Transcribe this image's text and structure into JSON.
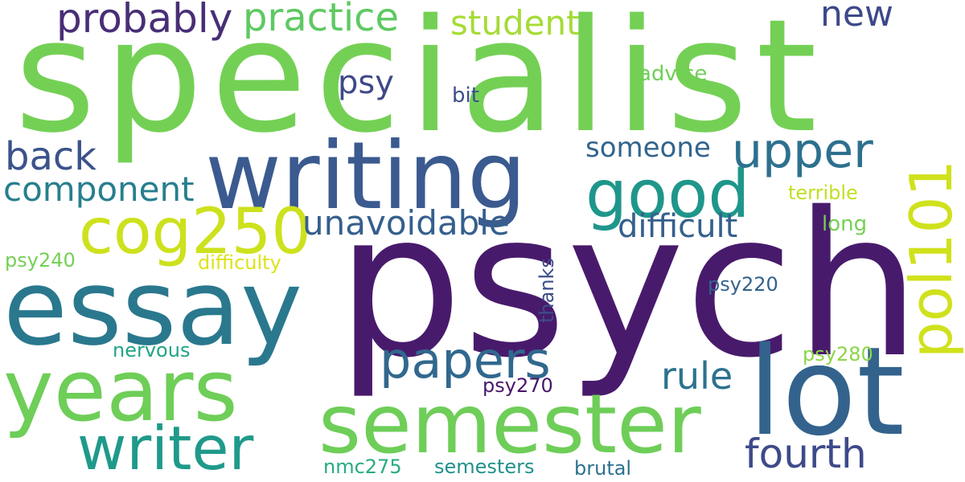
{
  "words": [
    {
      "text": "specialist",
      "color": "#74d055"
    },
    {
      "text": "psych",
      "color": "#481a6c"
    },
    {
      "text": "essay",
      "color": "#2a788e"
    },
    {
      "text": "writing",
      "color": "#3b5a8f"
    },
    {
      "text": "lot",
      "color": "#33638d"
    },
    {
      "text": "semester",
      "color": "#6ece58"
    },
    {
      "text": "years",
      "color": "#6ece58"
    },
    {
      "text": "good",
      "color": "#1f968b"
    },
    {
      "text": "writer",
      "color": "#1f9a8a"
    },
    {
      "text": "cog250",
      "color": "#cde11d"
    },
    {
      "text": "pol101",
      "color": "#d0e11c"
    },
    {
      "text": "upper",
      "color": "#2d708e"
    },
    {
      "text": "papers",
      "color": "#31688e"
    },
    {
      "text": "fourth",
      "color": "#3e4a89"
    },
    {
      "text": "probably",
      "color": "#482e76"
    },
    {
      "text": "practice",
      "color": "#5ec962"
    },
    {
      "text": "student",
      "color": "#a5db36"
    },
    {
      "text": "new",
      "color": "#3e4989"
    },
    {
      "text": "back",
      "color": "#3b528b"
    },
    {
      "text": "component",
      "color": "#277f8e"
    },
    {
      "text": "unavoidable",
      "color": "#355f8d"
    },
    {
      "text": "difficult",
      "color": "#35608d"
    },
    {
      "text": "rule",
      "color": "#2c728e"
    },
    {
      "text": "psy",
      "color": "#3e4989"
    },
    {
      "text": "someone",
      "color": "#32648e"
    },
    {
      "text": "bit",
      "color": "#3d4e8a"
    },
    {
      "text": "advice",
      "color": "#70cf57"
    },
    {
      "text": "terrible",
      "color": "#c2df23"
    },
    {
      "text": "long",
      "color": "#75d054"
    },
    {
      "text": "difficulty",
      "color": "#dde318"
    },
    {
      "text": "psy240",
      "color": "#74d055"
    },
    {
      "text": "thanks",
      "color": "#3d4d8a"
    },
    {
      "text": "psy220",
      "color": "#33628d"
    },
    {
      "text": "nervous",
      "color": "#20a486"
    },
    {
      "text": "psy280",
      "color": "#8bd646"
    },
    {
      "text": "psy270",
      "color": "#481769"
    },
    {
      "text": "nmc275",
      "color": "#25ac82"
    },
    {
      "text": "semesters",
      "color": "#21918c"
    },
    {
      "text": "brutal",
      "color": "#2d718e"
    }
  ]
}
